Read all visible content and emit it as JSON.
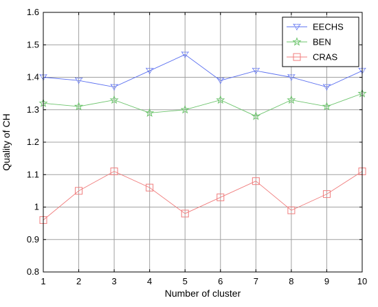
{
  "chart_data": {
    "type": "line",
    "title": "",
    "xlabel": "Number of cluster",
    "ylabel": "Quality of CH",
    "x": [
      1,
      2,
      3,
      4,
      5,
      6,
      7,
      8,
      9,
      10
    ],
    "xlim": [
      1,
      10
    ],
    "ylim": [
      0.8,
      1.6
    ],
    "xticks": [
      "1",
      "2",
      "3",
      "4",
      "5",
      "6",
      "7",
      "8",
      "9",
      "10"
    ],
    "yticks": [
      "0.8",
      "0.9",
      "1",
      "1.1",
      "1.2",
      "1.3",
      "1.4",
      "1.5",
      "1.6"
    ],
    "grid": true,
    "legend_position": "top-right",
    "series": [
      {
        "name": "EECHS",
        "color": "#5a6ff0",
        "marker": "triangle-down",
        "values": [
          1.4,
          1.39,
          1.37,
          1.42,
          1.47,
          1.39,
          1.42,
          1.4,
          1.37,
          1.42
        ]
      },
      {
        "name": "BEN",
        "color": "#6cc46c",
        "marker": "star",
        "values": [
          1.32,
          1.31,
          1.33,
          1.29,
          1.3,
          1.33,
          1.28,
          1.33,
          1.31,
          1.35
        ]
      },
      {
        "name": "CRAS",
        "color": "#f07c7c",
        "marker": "square",
        "values": [
          0.96,
          1.05,
          1.11,
          1.06,
          0.98,
          1.03,
          1.08,
          0.99,
          1.04,
          1.11
        ]
      }
    ]
  }
}
